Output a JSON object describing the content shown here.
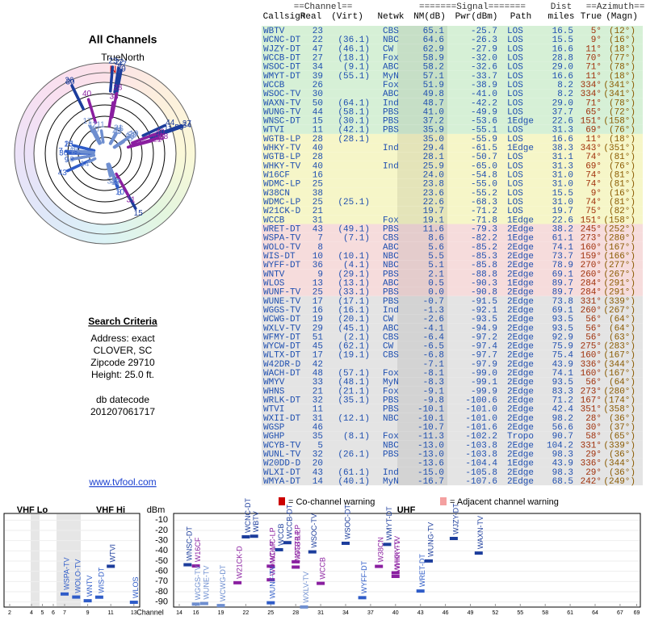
{
  "left": {
    "title": "All Channels",
    "north_label": "TrueNorth",
    "n": "N",
    "criteria_title": "Search Criteria",
    "criteria": [
      "Address: exact",
      "CLOVER, SC",
      "Zipcode 29710",
      "Height: 25.0 ft."
    ],
    "datecode_label": "db datecode",
    "datecode": "201207061717",
    "link": "www.tvfool.com"
  },
  "table": {
    "group_headers": [
      "==Channel==",
      "=======Signal=======",
      "Dist",
      "==Azimuth=="
    ],
    "headers": [
      "Callsign",
      "Real",
      "(Virt)",
      "Netwk",
      "NM(dB)",
      "Pwr(dBm)",
      "Path",
      "miles",
      "True",
      "(Magn)"
    ],
    "rows": [
      [
        "WBTV",
        23,
        null,
        "CBS",
        65.1,
        -25.7,
        "LOS",
        16.5,
        {
          "value": 5,
          "label": "5°"
        },
        "(12°)",
        "#d6f0d6"
      ],
      [
        "WCNC-DT",
        22,
        "(36.1)",
        "NBC",
        64.6,
        -26.3,
        "LOS",
        15.5,
        {
          "value": 9,
          "label": "9°"
        },
        "(16°)",
        "#d6f0d6"
      ],
      [
        "WJZY-DT",
        47,
        "(46.1)",
        "CW",
        62.9,
        -27.9,
        "LOS",
        16.6,
        {
          "value": 11,
          "label": "11°"
        },
        "(18°)",
        "#d6f0d6"
      ],
      [
        "WCCB-DT",
        27,
        "(18.1)",
        "Fox",
        58.9,
        {
          "value": -32,
          "label": "-32.0"
        },
        "LOS",
        28.8,
        {
          "value": 70,
          "label": "70°"
        },
        "(77°)",
        "#d6f0d6"
      ],
      [
        "WSOC-DT",
        34,
        "(9.1)",
        "ABC",
        58.2,
        -32.6,
        "LOS",
        {
          "value": 29,
          "label": "29.0"
        },
        {
          "value": 71,
          "label": "71°"
        },
        "(78°)",
        "#d6f0d6"
      ],
      [
        "WMYT-DT",
        39,
        "(55.1)",
        "MyN",
        57.1,
        -33.7,
        "LOS",
        16.6,
        {
          "value": 11,
          "label": "11°"
        },
        "(18°)",
        "#d6f0d6"
      ],
      [
        "WCCB",
        26,
        null,
        "Fox",
        51.9,
        -38.9,
        "LOS",
        8.2,
        {
          "value": 334,
          "label": "334°"
        },
        "(341°)",
        "#d6f0d6"
      ],
      [
        "WSOC-TV",
        30,
        null,
        "ABC",
        49.8,
        {
          "value": -41,
          "label": "-41.0"
        },
        "LOS",
        8.2,
        {
          "value": 334,
          "label": "334°"
        },
        "(341°)",
        "#d6f0d6"
      ],
      [
        "WAXN-TV",
        50,
        "(64.1)",
        "Ind",
        48.7,
        -42.2,
        "LOS",
        {
          "value": 29,
          "label": "29.0"
        },
        {
          "value": 71,
          "label": "71°"
        },
        "(78°)",
        "#d6f0d6"
      ],
      [
        "WUNG-TV",
        44,
        "(58.1)",
        "PBS",
        {
          "value": 41,
          "label": "41.0"
        },
        -49.9,
        "LOS",
        37.7,
        {
          "value": 65,
          "label": "65°"
        },
        "(72°)",
        "#d6f0d6"
      ],
      [
        "WNSC-DT",
        15,
        "(30.1)",
        "PBS",
        37.2,
        -53.6,
        "1Edge",
        22.6,
        {
          "value": 151,
          "label": "151°"
        },
        "(158°)",
        "#d6f0d6"
      ],
      [
        "WTVI",
        11,
        "(42.1)",
        "PBS",
        35.9,
        -55.1,
        "LOS",
        31.3,
        {
          "value": 69,
          "label": "69°"
        },
        "(76°)",
        "#d6f0d6"
      ],
      [
        "WGTB-LP",
        28,
        "(28.1)",
        null,
        {
          "value": 35,
          "label": "35.0"
        },
        -55.9,
        "LOS",
        16.6,
        {
          "value": 11,
          "label": "11°"
        },
        "(18°)",
        "#f6f6c8"
      ],
      [
        "WHKY-TV",
        40,
        null,
        "Ind",
        29.4,
        -61.5,
        "1Edge",
        38.3,
        {
          "value": 343,
          "label": "343°"
        },
        "(351°)",
        "#f6f6c8"
      ],
      [
        "WGTB-LP",
        28,
        null,
        null,
        28.1,
        -50.7,
        "LOS",
        31.1,
        {
          "value": 74,
          "label": "74°"
        },
        "(81°)",
        "#f6f6c8"
      ],
      [
        "WHKY-TV",
        40,
        null,
        "Ind",
        25.9,
        {
          "value": -65,
          "label": "-65.0"
        },
        "LOS",
        31.3,
        {
          "value": 69,
          "label": "69°"
        },
        "(76°)",
        "#f6f6c8"
      ],
      [
        "W16CF",
        16,
        null,
        null,
        {
          "value": 24,
          "label": "24.0"
        },
        -54.8,
        "LOS",
        {
          "value": 31,
          "label": "31.0"
        },
        {
          "value": 74,
          "label": "74°"
        },
        "(81°)",
        "#f6f6c8"
      ],
      [
        "WDMC-LP",
        25,
        null,
        null,
        23.8,
        {
          "value": -55,
          "label": "-55.0"
        },
        "LOS",
        {
          "value": 31,
          "label": "31.0"
        },
        {
          "value": 74,
          "label": "74°"
        },
        "(81°)",
        "#f6f6c8"
      ],
      [
        "W38CN",
        38,
        null,
        null,
        23.6,
        -55.2,
        "LOS",
        15.5,
        {
          "value": 9,
          "label": "9°"
        },
        "(16°)",
        "#f6f6c8"
      ],
      [
        "WDMC-LP",
        25,
        "(25.1)",
        null,
        22.6,
        -68.3,
        "LOS",
        {
          "value": 31,
          "label": "31.0"
        },
        {
          "value": 74,
          "label": "74°"
        },
        "(81°)",
        "#f6f6c8"
      ],
      [
        "W21CK-D",
        21,
        null,
        null,
        19.7,
        -71.2,
        "LOS",
        19.7,
        {
          "value": 75,
          "label": "75°"
        },
        "(82°)",
        "#f6f6c8"
      ],
      [
        "WCCB",
        31,
        null,
        "Fox",
        19.1,
        -71.8,
        "1Edge",
        22.6,
        {
          "value": 151,
          "label": "151°"
        },
        "(158°)",
        "#f6f6c8"
      ],
      [
        "WRET-DT",
        43,
        "(49.1)",
        "PBS",
        11.6,
        -79.3,
        "2Edge",
        38.2,
        {
          "value": 245,
          "label": "245°"
        },
        "(252°)",
        "#f6dcdc"
      ],
      [
        "WSPA-TV",
        7,
        "(7.1)",
        "CBS",
        8.6,
        -82.2,
        "1Edge",
        61.1,
        {
          "value": 273,
          "label": "273°"
        },
        "(280°)",
        "#f6dcdc"
      ],
      [
        "WOLO-TV",
        8,
        null,
        "ABC",
        5.6,
        -85.2,
        "2Edge",
        74.1,
        {
          "value": 160,
          "label": "160°"
        },
        "(167°)",
        "#f6dcdc"
      ],
      [
        "WIS-DT",
        10,
        "(10.1)",
        "NBC",
        5.5,
        -85.3,
        "2Edge",
        73.7,
        {
          "value": 159,
          "label": "159°"
        },
        "(166°)",
        "#f6dcdc"
      ],
      [
        "WYFF-DT",
        36,
        "(4.1)",
        "NBC",
        5.1,
        -85.8,
        "2Edge",
        78.9,
        {
          "value": 270,
          "label": "270°"
        },
        "(277°)",
        "#f6dcdc"
      ],
      [
        "WNTV",
        9,
        "(29.1)",
        "PBS",
        2.1,
        -88.8,
        "2Edge",
        69.1,
        {
          "value": 260,
          "label": "260°"
        },
        "(267°)",
        "#f6dcdc"
      ],
      [
        "WLOS",
        13,
        "(13.1)",
        "ABC",
        0.5,
        -90.3,
        "1Edge",
        89.7,
        {
          "value": 284,
          "label": "284°"
        },
        "(291°)",
        "#f6dcdc"
      ],
      [
        "WUNF-TV",
        25,
        "(33.1)",
        "PBS",
        {
          "value": 0,
          "label": "0.0"
        },
        -90.8,
        "2Edge",
        89.7,
        {
          "value": 284,
          "label": "284°"
        },
        "(291°)",
        "#f6dcdc"
      ],
      [
        "WUNE-TV",
        17,
        "(17.1)",
        "PBS",
        -0.7,
        -91.5,
        "2Edge",
        73.8,
        {
          "value": 331,
          "label": "331°"
        },
        "(339°)",
        "#e4e4e4"
      ],
      [
        "WGGS-TV",
        16,
        "(16.1)",
        "Ind",
        -1.3,
        -92.1,
        "2Edge",
        69.1,
        {
          "value": 260,
          "label": "260°"
        },
        "(267°)",
        "#e4e4e4"
      ],
      [
        "WCWG-DT",
        19,
        "(20.1)",
        "CW",
        -2.6,
        -93.5,
        "2Edge",
        93.5,
        {
          "value": 56,
          "label": "56°"
        },
        "(64°)",
        "#e4e4e4"
      ],
      [
        "WXLV-TV",
        29,
        "(45.1)",
        "ABC",
        -4.1,
        -94.9,
        "2Edge",
        93.5,
        {
          "value": 56,
          "label": "56°"
        },
        "(64°)",
        "#e4e4e4"
      ],
      [
        "WFMY-DT",
        51,
        "(2.1)",
        "CBS",
        -6.4,
        -97.2,
        "2Edge",
        92.9,
        {
          "value": 56,
          "label": "56°"
        },
        "(63°)",
        "#e4e4e4"
      ],
      [
        "WYCW-DT",
        45,
        "(62.1)",
        "CW",
        -6.5,
        -97.4,
        "2Edge",
        75.9,
        {
          "value": 275,
          "label": "275°"
        },
        "(283°)",
        "#e4e4e4"
      ],
      [
        "WLTX-DT",
        17,
        "(19.1)",
        "CBS",
        -6.8,
        -97.7,
        "2Edge",
        75.4,
        {
          "value": 160,
          "label": "160°"
        },
        "(167°)",
        "#e4e4e4"
      ],
      [
        "W42DR-D",
        42,
        null,
        null,
        -7.1,
        -97.9,
        "2Edge",
        43.9,
        {
          "value": 336,
          "label": "336°"
        },
        "(344°)",
        "#e4e4e4"
      ],
      [
        "WACH-DT",
        48,
        "(57.1)",
        "Fox",
        -8.1,
        {
          "value": -99,
          "label": "-99.0"
        },
        "2Edge",
        74.1,
        {
          "value": 160,
          "label": "160°"
        },
        "(167°)",
        "#e4e4e4"
      ],
      [
        "WMYV",
        33,
        "(48.1)",
        "MyN",
        -8.3,
        -99.1,
        "2Edge",
        93.5,
        {
          "value": 56,
          "label": "56°"
        },
        "(64°)",
        "#e4e4e4"
      ],
      [
        "WHNS",
        21,
        "(21.1)",
        "Fox",
        -9.1,
        -99.9,
        "2Edge",
        83.3,
        {
          "value": 273,
          "label": "273°"
        },
        "(280°)",
        "#e4e4e4"
      ],
      [
        "WRLK-DT",
        32,
        "(35.1)",
        "PBS",
        -9.8,
        -100.6,
        "2Edge",
        71.2,
        {
          "value": 167,
          "label": "167°"
        },
        "(174°)",
        "#e4e4e4"
      ],
      [
        "WTVI",
        11,
        null,
        "PBS",
        -10.1,
        {
          "value": -101,
          "label": "-101.0"
        },
        "2Edge",
        42.4,
        {
          "value": 351,
          "label": "351°"
        },
        "(358°)",
        "#e4e4e4"
      ],
      [
        "WXII-DT",
        31,
        "(12.1)",
        "NBC",
        -10.1,
        {
          "value": -101,
          "label": "-101.0"
        },
        "2Edge",
        98.2,
        {
          "value": 28,
          "label": "28°"
        },
        "(36°)",
        "#e4e4e4"
      ],
      [
        "WGSP",
        46,
        null,
        null,
        -10.7,
        -101.6,
        "2Edge",
        56.6,
        {
          "value": 30,
          "label": "30°"
        },
        "(37°)",
        "#e4e4e4"
      ],
      [
        "WGHP",
        35,
        "(8.1)",
        "Fox",
        -11.3,
        -102.2,
        "Tropo",
        90.7,
        {
          "value": 58,
          "label": "58°"
        },
        "(65°)",
        "#e4e4e4"
      ],
      [
        "WCYB-TV",
        5,
        null,
        "NBC",
        {
          "value": -13,
          "label": "-13.0"
        },
        -103.8,
        "2Edge",
        104.2,
        {
          "value": 331,
          "label": "331°"
        },
        "(339°)",
        "#e4e4e4"
      ],
      [
        "WUNL-TV",
        32,
        "(26.1)",
        "PBS",
        {
          "value": -13,
          "label": "-13.0"
        },
        -103.8,
        "2Edge",
        98.3,
        {
          "value": 29,
          "label": "29°"
        },
        "(36°)",
        "#e4e4e4"
      ],
      [
        "W20DD-D",
        20,
        null,
        null,
        -13.6,
        -104.4,
        "1Edge",
        43.9,
        {
          "value": 336,
          "label": "336°"
        },
        "(344°)",
        "#e4e4e4"
      ],
      [
        "WLXI-DT",
        43,
        "(61.1)",
        "Ind",
        {
          "value": -15,
          "label": "-15.0"
        },
        -105.8,
        "2Edge",
        98.3,
        {
          "value": 29,
          "label": "29°"
        },
        "(36°)",
        "#e4e4e4"
      ],
      [
        "WMYA-DT",
        14,
        "(40.1)",
        "MyN",
        -16.7,
        -107.6,
        "2Edge",
        68.5,
        {
          "value": 242,
          "label": "242°"
        },
        "(249°)",
        "#e4e4e4"
      ]
    ]
  },
  "spectrum": {
    "vhf_lo": "VHF Lo",
    "vhf_hi": "VHF Hi",
    "uhf": "UHF",
    "y_label": "dBm",
    "x_label": "Channel",
    "co_channel": "= Co-channel warning",
    "adjacent": "= Adjacent channel warning",
    "ylim": [
      -95,
      -5
    ],
    "yticks": [
      -10,
      -20,
      -30,
      -40,
      -50,
      -60,
      -70,
      -80,
      -90
    ],
    "vhf_ticks": [
      2,
      4,
      5,
      6,
      7,
      9,
      11,
      13
    ],
    "uhf_ticks": [
      14,
      16,
      19,
      22,
      25,
      28,
      31,
      34,
      37,
      40,
      43,
      46,
      49,
      52,
      55,
      58,
      61,
      64,
      67,
      69
    ]
  }
}
